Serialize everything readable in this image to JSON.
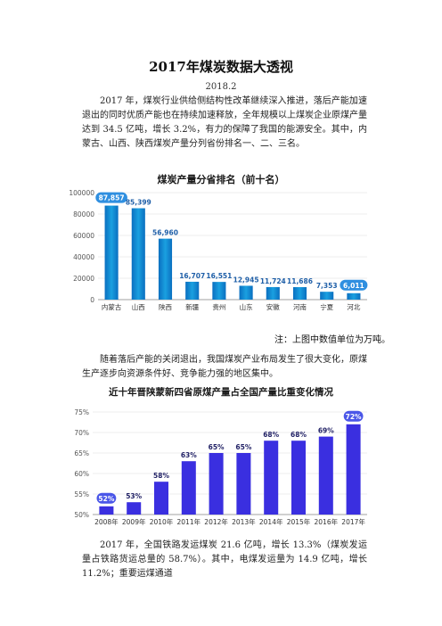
{
  "title": "2017年煤炭数据大透视",
  "date": "2018.2",
  "paragraphs": {
    "p1": "2017 年，煤炭行业供给侧结构性改革继续深入推进，落后产能加速退出的同时优质产能也在持续加速释放，全年规模以上煤炭企业原煤产量达到 34.5 亿吨，增长 3.2%，有力的保障了我国的能源安全。其中，内蒙古、山西、陕西煤炭产量分列省份排名一、二、三名。",
    "p2": "随着落后产能的关闭退出，我国煤炭产业布局发生了很大变化，原煤生产逐步向资源条件好、竞争能力强的地区集中。",
    "p3": "2017 年，全国铁路发运煤炭 21.6 亿吨，增长 13.3%（煤炭发运量占铁路货运总量的 58.7%）。其中，电煤发运量为 14.9 亿吨，增长 11.2%；重要运煤通道"
  },
  "chart_data": [
    {
      "type": "bar",
      "title": "煤炭产量分省排名（前十名）",
      "categories": [
        "内蒙古",
        "山西",
        "陕西",
        "新疆",
        "贵州",
        "山东",
        "安徽",
        "河南",
        "宁夏",
        "河北"
      ],
      "values": [
        87857,
        85399,
        56960,
        16707,
        16551,
        12945,
        11724,
        11686,
        7353,
        6011
      ],
      "value_labels": [
        "87,857",
        "85,399",
        "56,960",
        "16,707",
        "16,551",
        "12,945",
        "11,724",
        "11,686",
        "7,353",
        "6,011"
      ],
      "highlighted": [
        "内蒙古",
        "河北"
      ],
      "ylim": [
        0,
        100000
      ],
      "yticks": [
        0,
        20000,
        40000,
        60000,
        80000,
        100000
      ],
      "ytick_labels": [
        "0",
        "20000",
        "40000",
        "60000",
        "80000",
        "100000"
      ],
      "grid": true,
      "note": "注：上图中数值单位为万吨。",
      "colors": {
        "bar": "#1aa0e0",
        "bar_dark": "#0a6fc0",
        "badge": "#2f8fe0",
        "label": "#1f5fa8"
      }
    },
    {
      "type": "bar",
      "title": "近十年晋陕蒙新四省原煤产量占全国产量比重变化情况",
      "categories": [
        "2008年",
        "2009年",
        "2010年",
        "2011年",
        "2012年",
        "2013年",
        "2014年",
        "2015年",
        "2016年",
        "2017年"
      ],
      "values": [
        52,
        53,
        58,
        63,
        65,
        65,
        68,
        68,
        69,
        72
      ],
      "value_labels": [
        "52%",
        "53%",
        "58%",
        "63%",
        "65%",
        "65%",
        "68%",
        "68%",
        "69%",
        "72%"
      ],
      "highlighted": [
        "2008年",
        "2017年"
      ],
      "ylim": [
        50,
        75
      ],
      "yticks": [
        50,
        55,
        60,
        65,
        70,
        75
      ],
      "ytick_labels": [
        "50%",
        "55%",
        "60%",
        "65%",
        "70%",
        "75%"
      ],
      "grid": true,
      "colors": {
        "bar": "#3a2fe0",
        "badge": "#4a56e8",
        "label": "#222266"
      }
    }
  ]
}
